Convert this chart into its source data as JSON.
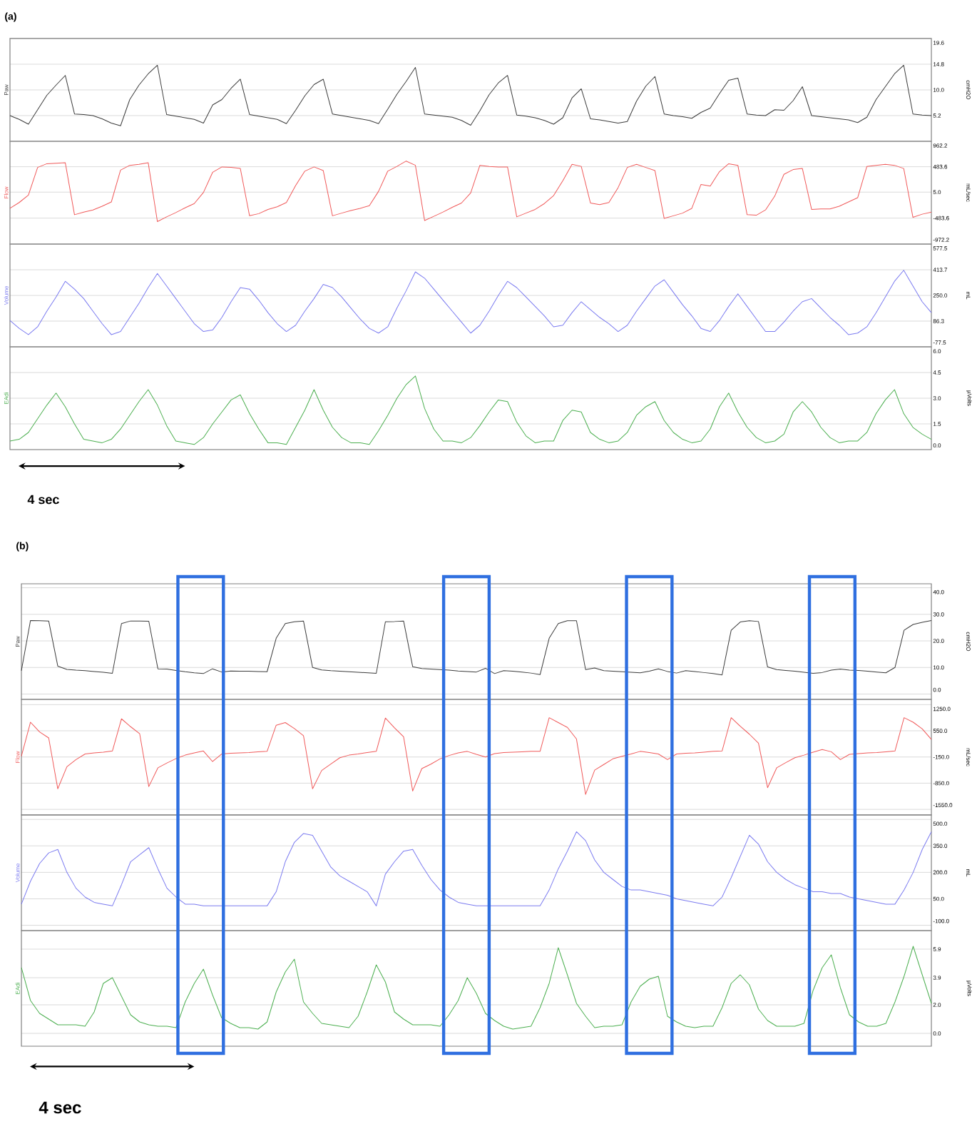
{
  "chart_data": [
    {
      "type": "line",
      "ylabel": "cmH2O",
      "annotations": [
        "(a)"
      ],
      "tick_labels": "y",
      "grid": "y",
      "ylim": [
        0.4,
        19.6
      ],
      "yticks": [
        {
          "value": 19.6,
          "label": "19.6"
        },
        {
          "value": 14.8,
          "label": "14.8"
        },
        {
          "value": 10.0,
          "label": "10.0"
        },
        {
          "value": 5.2,
          "label": "5.2"
        }
      ],
      "categories": [
        null,
        null,
        null,
        null,
        null,
        null,
        null,
        null,
        null,
        null,
        null,
        null,
        null,
        null,
        null,
        null,
        null,
        null,
        null,
        null,
        null,
        null,
        null,
        null,
        null,
        null,
        null,
        null,
        null,
        null,
        null,
        null,
        null,
        null,
        null,
        null,
        null,
        null,
        null,
        null,
        null,
        null,
        null,
        null,
        null,
        null,
        null,
        null,
        null,
        null,
        null,
        null,
        null,
        null,
        null,
        null,
        null,
        null,
        null,
        null,
        null,
        null,
        null,
        null,
        null,
        null,
        null,
        null,
        null,
        null,
        null,
        null,
        null,
        null,
        null,
        null,
        null,
        null,
        null,
        null,
        null,
        null,
        null,
        null,
        null,
        null,
        null,
        null,
        null,
        null,
        null,
        null,
        null,
        null,
        null,
        null,
        null,
        null,
        null,
        null,
        null
      ],
      "series": [
        {
          "name": "Paw",
          "color": "#3c3c3c",
          "values": [
            5.2,
            4.5,
            3.6,
            6.3,
            9.0,
            10.9,
            12.7,
            5.5,
            5.4,
            5.2,
            4.6,
            3.8,
            3.3,
            8.2,
            10.9,
            13.0,
            14.6,
            5.4,
            5.1,
            4.8,
            4.5,
            3.8,
            7.2,
            8.2,
            10.3,
            12.0,
            5.4,
            5.1,
            4.8,
            4.5,
            3.7,
            6.2,
            8.9,
            11.0,
            12.0,
            5.5,
            5.2,
            4.9,
            4.6,
            4.3,
            3.7,
            6.4,
            9.2,
            11.6,
            14.2,
            5.5,
            5.3,
            5.1,
            4.9,
            4.3,
            3.4,
            6.1,
            9.1,
            11.3,
            12.7,
            5.3,
            5.1,
            4.8,
            4.3,
            3.6,
            4.8,
            8.5,
            10.2,
            4.6,
            4.4,
            4.1,
            3.8,
            4.1,
            7.9,
            10.7,
            12.5,
            5.5,
            5.2,
            5.0,
            4.7,
            5.8,
            6.6,
            9.3,
            11.8,
            12.2,
            5.5,
            5.3,
            5.2,
            6.3,
            6.2,
            8.0,
            10.6,
            5.2,
            5.0,
            4.8,
            4.6,
            4.4,
            3.9,
            4.9,
            8.2,
            10.6,
            13.0,
            14.6,
            5.5,
            5.3,
            5.2
          ]
        }
      ]
    },
    {
      "type": "line",
      "ylabel": "mL/sec",
      "tick_labels": "y",
      "grid": "y",
      "ylim": [
        -972.2,
        962.2
      ],
      "yticks": [
        {
          "value": 962.2,
          "label": "962.2"
        },
        {
          "value": 483.6,
          "label": "483.6"
        },
        {
          "value": 5.0,
          "label": "5.0"
        },
        {
          "value": -483.6,
          "label": "-483.6"
        },
        {
          "value": -972.2,
          "label": "-972.2"
        }
      ],
      "categories": [
        null,
        null,
        null,
        null,
        null,
        null,
        null,
        null,
        null,
        null,
        null,
        null,
        null,
        null,
        null,
        null,
        null,
        null,
        null,
        null,
        null,
        null,
        null,
        null,
        null,
        null,
        null,
        null,
        null,
        null,
        null,
        null,
        null,
        null,
        null,
        null,
        null,
        null,
        null,
        null,
        null,
        null,
        null,
        null,
        null,
        null,
        null,
        null,
        null,
        null,
        null,
        null,
        null,
        null,
        null,
        null,
        null,
        null,
        null,
        null,
        null,
        null,
        null,
        null,
        null,
        null,
        null,
        null,
        null,
        null,
        null,
        null,
        null,
        null,
        null,
        null,
        null,
        null,
        null,
        null,
        null,
        null,
        null,
        null,
        null,
        null,
        null,
        null,
        null,
        null,
        null,
        null,
        null,
        null,
        null,
        null,
        null,
        null,
        null,
        null,
        null
      ],
      "series": [
        {
          "name": "Flow",
          "color": "#f05a5a",
          "values": [
            -300,
            -190,
            -50,
            470,
            540,
            550,
            560,
            -420,
            -370,
            -330,
            -260,
            -180,
            420,
            510,
            530,
            560,
            -550,
            -460,
            -380,
            -290,
            -210,
            0,
            380,
            480,
            470,
            450,
            -440,
            -400,
            -320,
            -270,
            -190,
            130,
            400,
            480,
            410,
            -440,
            -390,
            -340,
            -300,
            -250,
            20,
            400,
            490,
            590,
            510,
            -530,
            -450,
            -370,
            -280,
            -200,
            -10,
            510,
            490,
            480,
            480,
            -460,
            -390,
            -320,
            -210,
            -60,
            220,
            530,
            490,
            -200,
            -230,
            -190,
            90,
            470,
            530,
            470,
            410,
            -490,
            -440,
            -390,
            -300,
            150,
            120,
            390,
            540,
            510,
            -420,
            -430,
            -330,
            -70,
            340,
            430,
            450,
            -320,
            -310,
            -310,
            -260,
            -180,
            -100,
            490,
            510,
            530,
            510,
            450,
            -470,
            -410,
            -370
          ]
        }
      ]
    },
    {
      "type": "line",
      "ylabel": "mL",
      "tick_labels": "y",
      "grid": "y",
      "ylim": [
        -77.5,
        577.5
      ],
      "yticks": [
        {
          "value": 577.5,
          "label": "577.5"
        },
        {
          "value": 413.7,
          "label": "413.7"
        },
        {
          "value": 250.0,
          "label": "250.0"
        },
        {
          "value": 86.3,
          "label": "86.3"
        },
        {
          "value": -77.5,
          "label": "-77.5"
        }
      ],
      "categories": [
        null,
        null,
        null,
        null,
        null,
        null,
        null,
        null,
        null,
        null,
        null,
        null,
        null,
        null,
        null,
        null,
        null,
        null,
        null,
        null,
        null,
        null,
        null,
        null,
        null,
        null,
        null,
        null,
        null,
        null,
        null,
        null,
        null,
        null,
        null,
        null,
        null,
        null,
        null,
        null,
        null,
        null,
        null,
        null,
        null,
        null,
        null,
        null,
        null,
        null,
        null,
        null,
        null,
        null,
        null,
        null,
        null,
        null,
        null,
        null,
        null,
        null,
        null,
        null,
        null,
        null,
        null,
        null,
        null,
        null,
        null,
        null,
        null,
        null,
        null,
        null,
        null,
        null,
        null,
        null,
        null,
        null,
        null,
        null,
        null,
        null,
        null,
        null,
        null,
        null,
        null,
        null,
        null,
        null,
        null,
        null,
        null,
        null,
        null,
        null,
        null
      ],
      "series": [
        {
          "name": "Volume",
          "color": "#7b7bf0",
          "values": [
            90,
            40,
            0,
            50,
            150,
            240,
            340,
            290,
            230,
            150,
            70,
            0,
            20,
            110,
            200,
            300,
            390,
            310,
            230,
            150,
            70,
            20,
            30,
            110,
            210,
            300,
            290,
            220,
            140,
            70,
            20,
            60,
            150,
            230,
            320,
            300,
            240,
            170,
            100,
            40,
            10,
            50,
            170,
            280,
            400,
            360,
            290,
            220,
            150,
            80,
            10,
            60,
            150,
            250,
            340,
            300,
            240,
            180,
            120,
            50,
            60,
            140,
            210,
            160,
            110,
            70,
            20,
            60,
            150,
            230,
            310,
            350,
            270,
            190,
            120,
            40,
            20,
            90,
            180,
            260,
            180,
            100,
            20,
            20,
            80,
            150,
            210,
            230,
            170,
            110,
            60,
            0,
            10,
            50,
            140,
            240,
            340,
            410,
            310,
            210,
            140
          ]
        }
      ]
    },
    {
      "type": "line",
      "ylabel": "µVolts",
      "annotations": [
        "4 sec"
      ],
      "tick_labels": "y",
      "grid": "y",
      "ylim": [
        0,
        6
      ],
      "yticks": [
        {
          "value": 6,
          "label": "6.0"
        },
        {
          "value": 4.5,
          "label": "4.5"
        },
        {
          "value": 3,
          "label": "3.0"
        },
        {
          "value": 1.5,
          "label": "1.5"
        },
        {
          "value": 0,
          "label": "0.0"
        }
      ],
      "categories": [
        null,
        null,
        null,
        null,
        null,
        null,
        null,
        null,
        null,
        null,
        null,
        null,
        null,
        null,
        null,
        null,
        null,
        null,
        null,
        null,
        null,
        null,
        null,
        null,
        null,
        null,
        null,
        null,
        null,
        null,
        null,
        null,
        null,
        null,
        null,
        null,
        null,
        null,
        null,
        null,
        null,
        null,
        null,
        null,
        null,
        null,
        null,
        null,
        null,
        null,
        null,
        null,
        null,
        null,
        null,
        null,
        null,
        null,
        null,
        null,
        null,
        null,
        null,
        null,
        null,
        null,
        null,
        null,
        null,
        null,
        null,
        null,
        null,
        null,
        null,
        null,
        null,
        null,
        null,
        null,
        null,
        null,
        null,
        null,
        null,
        null,
        null,
        null,
        null,
        null,
        null,
        null,
        null,
        null,
        null,
        null,
        null,
        null,
        null,
        null,
        null
      ],
      "series": [
        {
          "name": "EAdi",
          "color": "#4caf50",
          "values": [
            0.5,
            0.6,
            1.0,
            1.8,
            2.6,
            3.3,
            2.5,
            1.5,
            0.6,
            0.5,
            0.4,
            0.6,
            1.2,
            2.0,
            2.8,
            3.5,
            2.6,
            1.4,
            0.5,
            0.4,
            0.3,
            0.7,
            1.5,
            2.2,
            2.9,
            3.2,
            2.1,
            1.2,
            0.4,
            0.4,
            0.3,
            1.3,
            2.3,
            3.5,
            2.3,
            1.3,
            0.7,
            0.4,
            0.4,
            0.3,
            1.1,
            2.0,
            3.0,
            3.8,
            4.3,
            2.4,
            1.2,
            0.5,
            0.5,
            0.4,
            0.7,
            1.4,
            2.2,
            2.9,
            2.8,
            1.6,
            0.8,
            0.4,
            0.5,
            0.5,
            1.7,
            2.3,
            2.2,
            1.0,
            0.6,
            0.4,
            0.5,
            1.0,
            2.0,
            2.5,
            2.8,
            1.7,
            1.0,
            0.6,
            0.4,
            0.5,
            1.2,
            2.5,
            3.3,
            2.2,
            1.3,
            0.7,
            0.4,
            0.5,
            0.9,
            2.2,
            2.8,
            2.2,
            1.3,
            0.7,
            0.4,
            0.5,
            0.5,
            1.0,
            2.1,
            2.9,
            3.5,
            2.1,
            1.3,
            0.9,
            0.6
          ]
        }
      ]
    },
    {
      "type": "line",
      "ylabel": "cmH2O",
      "annotations": [
        "(b)"
      ],
      "tick_labels": "y",
      "grid": "y",
      "ylim": [
        -2,
        41.5
      ],
      "yticks": [
        {
          "value": 40,
          "label": "40.0"
        },
        {
          "value": 30,
          "label": "30.0"
        },
        {
          "value": 20,
          "label": "20.0"
        },
        {
          "value": 10,
          "label": "10.0"
        },
        {
          "value": 0,
          "label": "0.0"
        }
      ],
      "categories": [
        null,
        null,
        null,
        null,
        null,
        null,
        null,
        null,
        null,
        null,
        null,
        null,
        null,
        null,
        null,
        null,
        null,
        null,
        null,
        null,
        null,
        null,
        null,
        null,
        null,
        null,
        null,
        null,
        null,
        null,
        null,
        null,
        null,
        null,
        null,
        null,
        null,
        null,
        null,
        null,
        null,
        null,
        null,
        null,
        null,
        null,
        null,
        null,
        null,
        null,
        null,
        null,
        null,
        null,
        null,
        null,
        null,
        null,
        null,
        null,
        null,
        null,
        null,
        null,
        null,
        null,
        null,
        null,
        null,
        null,
        null,
        null,
        null,
        null,
        null,
        null,
        null,
        null,
        null,
        null,
        null,
        null,
        null,
        null,
        null,
        null,
        null,
        null,
        null,
        null,
        null,
        null,
        null,
        null,
        null,
        null,
        null,
        null,
        null,
        null,
        null
      ],
      "series": [
        {
          "name": "Paw",
          "color": "#3c3c3c",
          "values": [
            8.8,
            27.7,
            27.6,
            27.5,
            10.5,
            9.3,
            9.0,
            8.8,
            8.5,
            8.2,
            7.8,
            26.5,
            27.5,
            27.5,
            27.4,
            9.5,
            9.4,
            8.9,
            8.4,
            8.0,
            7.7,
            9.5,
            8.3,
            8.7,
            8.6,
            8.6,
            8.5,
            8.4,
            21.0,
            26.5,
            27.2,
            27.5,
            10.0,
            9.1,
            8.8,
            8.6,
            8.4,
            8.2,
            8.0,
            7.8,
            27.2,
            27.3,
            27.5,
            10.3,
            9.6,
            9.4,
            9.2,
            9.0,
            8.7,
            8.5,
            8.3,
            9.7,
            7.7,
            8.8,
            8.6,
            8.3,
            7.9,
            7.3,
            21.0,
            26.5,
            27.6,
            27.6,
            9.2,
            9.8,
            8.8,
            8.6,
            8.4,
            8.2,
            8.0,
            8.6,
            9.5,
            8.5,
            7.9,
            8.8,
            8.5,
            8.1,
            7.7,
            7.2,
            24.0,
            27.1,
            27.6,
            27.3,
            10.2,
            9.2,
            8.9,
            8.6,
            8.2,
            7.8,
            8.1,
            9.0,
            9.4,
            9.0,
            8.9,
            8.6,
            8.3,
            8.0,
            10.0,
            24.0,
            26.2,
            27.0,
            27.7
          ]
        }
      ]
    },
    {
      "type": "line",
      "ylabel": "mL/sec",
      "tick_labels": "y",
      "grid": "y",
      "ylim": [
        -1700,
        1390
      ],
      "yticks": [
        {
          "value": 1250,
          "label": "1250.0"
        },
        {
          "value": 550,
          "label": "550.0"
        },
        {
          "value": -150,
          "label": "-150.0"
        },
        {
          "value": -850,
          "label": "-850.0"
        },
        {
          "value": -1550,
          "label": "-1550.0"
        }
      ],
      "categories": [
        null,
        null,
        null,
        null,
        null,
        null,
        null,
        null,
        null,
        null,
        null,
        null,
        null,
        null,
        null,
        null,
        null,
        null,
        null,
        null,
        null,
        null,
        null,
        null,
        null,
        null,
        null,
        null,
        null,
        null,
        null,
        null,
        null,
        null,
        null,
        null,
        null,
        null,
        null,
        null,
        null,
        null,
        null,
        null,
        null,
        null,
        null,
        null,
        null,
        null,
        null,
        null,
        null,
        null,
        null,
        null,
        null,
        null,
        null,
        null,
        null,
        null,
        null,
        null,
        null,
        null,
        null,
        null,
        null,
        null,
        null,
        null,
        null,
        null,
        null,
        null,
        null,
        null,
        null,
        null,
        null,
        null,
        null,
        null,
        null,
        null,
        null,
        null,
        null,
        null,
        null,
        null,
        null,
        null,
        null,
        null,
        null,
        null,
        null,
        null,
        null
      ],
      "series": [
        {
          "name": "Flow",
          "color": "#f05a5a",
          "values": [
            -130,
            780,
            520,
            360,
            -1000,
            -410,
            -220,
            -70,
            -40,
            -20,
            10,
            870,
            660,
            470,
            -940,
            -440,
            -310,
            -190,
            -100,
            -40,
            10,
            -270,
            -70,
            -50,
            -40,
            -30,
            -10,
            0,
            700,
            770,
            610,
            420,
            -1000,
            -510,
            -340,
            -170,
            -100,
            -70,
            -30,
            0,
            890,
            630,
            390,
            -1060,
            -460,
            -340,
            -200,
            -110,
            -40,
            0,
            -80,
            -150,
            -60,
            -30,
            -20,
            -10,
            0,
            0,
            900,
            770,
            640,
            330,
            -1150,
            -500,
            -350,
            -200,
            -130,
            -70,
            0,
            -30,
            -70,
            -220,
            -70,
            -50,
            -40,
            -20,
            0,
            10,
            900,
            670,
            460,
            220,
            -970,
            -440,
            -300,
            -170,
            -100,
            -20,
            50,
            -10,
            -220,
            -80,
            -60,
            -40,
            -30,
            -10,
            10,
            900,
            780,
            600,
            320
          ]
        }
      ]
    },
    {
      "type": "line",
      "ylabel": "mL",
      "tick_labels": "y",
      "grid": "y",
      "ylim": [
        -130,
        525
      ],
      "yticks": [
        {
          "value": 500,
          "label": "500.0"
        },
        {
          "value": 350,
          "label": "350.0"
        },
        {
          "value": 200,
          "label": "200.0"
        },
        {
          "value": 50,
          "label": "50.0"
        },
        {
          "value": -100,
          "label": "-100.0"
        }
      ],
      "categories": [
        null,
        null,
        null,
        null,
        null,
        null,
        null,
        null,
        null,
        null,
        null,
        null,
        null,
        null,
        null,
        null,
        null,
        null,
        null,
        null,
        null,
        null,
        null,
        null,
        null,
        null,
        null,
        null,
        null,
        null,
        null,
        null,
        null,
        null,
        null,
        null,
        null,
        null,
        null,
        null,
        null,
        null,
        null,
        null,
        null,
        null,
        null,
        null,
        null,
        null,
        null,
        null,
        null,
        null,
        null,
        null,
        null,
        null,
        null,
        null,
        null,
        null,
        null,
        null,
        null,
        null,
        null,
        null,
        null,
        null,
        null,
        null,
        null,
        null,
        null,
        null,
        null,
        null,
        null,
        null,
        null,
        null,
        null,
        null,
        null,
        null,
        null,
        null,
        null,
        null,
        null,
        null,
        null,
        null,
        null,
        null,
        null,
        null,
        null,
        null,
        null
      ],
      "series": [
        {
          "name": "Volume",
          "color": "#7b7bf0",
          "values": [
            20,
            150,
            250,
            310,
            330,
            200,
            110,
            60,
            30,
            20,
            10,
            130,
            260,
            300,
            340,
            220,
            110,
            60,
            20,
            20,
            10,
            10,
            10,
            10,
            10,
            10,
            10,
            10,
            90,
            260,
            370,
            420,
            410,
            320,
            230,
            180,
            150,
            120,
            90,
            10,
            190,
            260,
            320,
            330,
            240,
            160,
            100,
            60,
            30,
            20,
            10,
            10,
            10,
            10,
            10,
            10,
            10,
            10,
            100,
            220,
            320,
            430,
            380,
            270,
            200,
            160,
            120,
            100,
            100,
            90,
            80,
            70,
            50,
            40,
            30,
            20,
            10,
            60,
            170,
            290,
            410,
            360,
            260,
            200,
            160,
            130,
            110,
            90,
            90,
            80,
            80,
            60,
            50,
            40,
            30,
            20,
            20,
            100,
            200,
            330,
            430
          ]
        }
      ]
    },
    {
      "type": "line",
      "ylabel": "µVolts",
      "annotations": [
        "4 sec"
      ],
      "tick_labels": "y",
      "grid": "y",
      "ylim": [
        -0.9,
        7.2
      ],
      "yticks": [
        {
          "value": 5.9,
          "label": "5.9"
        },
        {
          "value": 3.9,
          "label": "3.9"
        },
        {
          "value": 2.0,
          "label": "2.0"
        },
        {
          "value": 0,
          "label": "0.0"
        }
      ],
      "categories": [
        null,
        null,
        null,
        null,
        null,
        null,
        null,
        null,
        null,
        null,
        null,
        null,
        null,
        null,
        null,
        null,
        null,
        null,
        null,
        null,
        null,
        null,
        null,
        null,
        null,
        null,
        null,
        null,
        null,
        null,
        null,
        null,
        null,
        null,
        null,
        null,
        null,
        null,
        null,
        null,
        null,
        null,
        null,
        null,
        null,
        null,
        null,
        null,
        null,
        null,
        null,
        null,
        null,
        null,
        null,
        null,
        null,
        null,
        null,
        null,
        null,
        null,
        null,
        null,
        null,
        null,
        null,
        null,
        null,
        null,
        null,
        null,
        null,
        null,
        null,
        null,
        null,
        null,
        null,
        null,
        null,
        null,
        null,
        null,
        null,
        null,
        null,
        null,
        null,
        null,
        null,
        null,
        null,
        null,
        null,
        null,
        null,
        null,
        null,
        null,
        null
      ],
      "series": [
        {
          "name": "EAdi",
          "color": "#4caf50",
          "values": [
            4.6,
            2.3,
            1.4,
            1.0,
            0.6,
            0.6,
            0.6,
            0.5,
            1.5,
            3.5,
            3.9,
            2.6,
            1.3,
            0.8,
            0.6,
            0.5,
            0.5,
            0.4,
            2.2,
            3.5,
            4.5,
            2.7,
            1.1,
            0.7,
            0.4,
            0.4,
            0.3,
            0.8,
            2.9,
            4.3,
            5.2,
            2.2,
            1.4,
            0.7,
            0.6,
            0.5,
            0.4,
            1.2,
            2.9,
            4.8,
            3.6,
            1.5,
            1.0,
            0.6,
            0.6,
            0.6,
            0.5,
            1.3,
            2.3,
            3.9,
            2.8,
            1.4,
            0.9,
            0.5,
            0.3,
            0.4,
            0.5,
            1.8,
            3.5,
            6.0,
            4.1,
            2.1,
            1.2,
            0.4,
            0.5,
            0.5,
            0.6,
            2.2,
            3.3,
            3.8,
            4.0,
            1.2,
            0.8,
            0.5,
            0.4,
            0.5,
            0.5,
            1.8,
            3.5,
            4.1,
            3.4,
            1.7,
            0.9,
            0.5,
            0.5,
            0.5,
            0.7,
            3.0,
            4.6,
            5.5,
            3.2,
            1.3,
            0.8,
            0.5,
            0.5,
            0.7,
            2.2,
            4.0,
            6.1,
            4.1,
            2.1
          ]
        }
      ]
    }
  ]
}
